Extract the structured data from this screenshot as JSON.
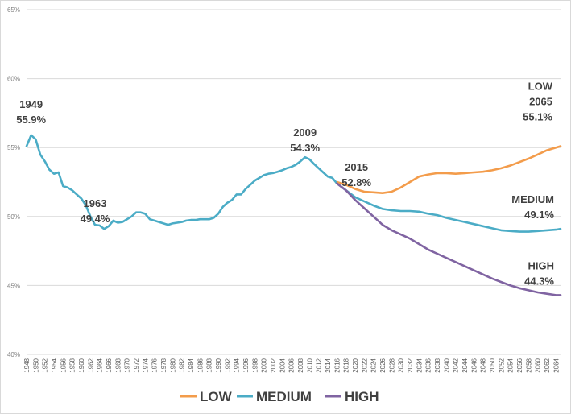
{
  "chart_data": {
    "type": "line",
    "y_ticks": [
      "65%",
      "60%",
      "55%",
      "50%",
      "45%",
      "40%"
    ],
    "ylim": [
      40,
      65
    ],
    "xlim": [
      1948,
      2065
    ],
    "x_tick_labels": [
      "1948",
      "1950",
      "1952",
      "1954",
      "1956",
      "1958",
      "1960",
      "1962",
      "1964",
      "1966",
      "1968",
      "1970",
      "1972",
      "1974",
      "1976",
      "1978",
      "1980",
      "1982",
      "1984",
      "1986",
      "1988",
      "1990",
      "1992",
      "1994",
      "1996",
      "1998",
      "2000",
      "2002",
      "2004",
      "2006",
      "2008",
      "2010",
      "2012",
      "2014",
      "2016",
      "2018",
      "2020",
      "2022",
      "2024",
      "2026",
      "2028",
      "2030",
      "2032",
      "2034",
      "2036",
      "2038",
      "2040",
      "2042",
      "2044",
      "2046",
      "2048",
      "2050",
      "2052",
      "2054",
      "2056",
      "2058",
      "2060",
      "2062",
      "2064"
    ],
    "grid": "horizontal",
    "legend_position": "bottom",
    "series": [
      {
        "name": "LOW",
        "color": "#f39c4b",
        "x": [
          2016,
          2018,
          2020,
          2022,
          2024,
          2026,
          2028,
          2030,
          2032,
          2034,
          2036,
          2038,
          2040,
          2042,
          2044,
          2046,
          2048,
          2050,
          2052,
          2054,
          2056,
          2058,
          2060,
          2062,
          2064,
          2065
        ],
        "values": [
          52.5,
          52.3,
          52.0,
          51.8,
          51.75,
          51.7,
          51.8,
          52.1,
          52.5,
          52.9,
          53.05,
          53.15,
          53.15,
          53.1,
          53.15,
          53.2,
          53.25,
          53.35,
          53.5,
          53.7,
          53.95,
          54.2,
          54.5,
          54.8,
          55.0,
          55.1
        ]
      },
      {
        "name": "MEDIUM",
        "color": "#4bacc6",
        "x": [
          1948,
          1949,
          1950,
          1951,
          1952,
          1953,
          1954,
          1955,
          1956,
          1957,
          1958,
          1959,
          1960,
          1961,
          1962,
          1963,
          1964,
          1965,
          1966,
          1967,
          1968,
          1969,
          1970,
          1971,
          1972,
          1973,
          1974,
          1975,
          1976,
          1977,
          1978,
          1979,
          1980,
          1981,
          1982,
          1983,
          1984,
          1985,
          1986,
          1987,
          1988,
          1989,
          1990,
          1991,
          1992,
          1993,
          1994,
          1995,
          1996,
          1997,
          1998,
          1999,
          2000,
          2001,
          2002,
          2003,
          2004,
          2005,
          2006,
          2007,
          2008,
          2009,
          2010,
          2011,
          2012,
          2013,
          2014,
          2015,
          2016,
          2018,
          2020,
          2022,
          2024,
          2026,
          2028,
          2030,
          2032,
          2034,
          2036,
          2038,
          2040,
          2042,
          2044,
          2046,
          2048,
          2050,
          2052,
          2054,
          2056,
          2058,
          2060,
          2062,
          2064,
          2065
        ],
        "values": [
          55.1,
          55.9,
          55.6,
          54.5,
          54.0,
          53.4,
          53.1,
          53.2,
          52.2,
          52.1,
          51.9,
          51.6,
          51.3,
          50.8,
          50.0,
          49.4,
          49.35,
          49.1,
          49.3,
          49.7,
          49.55,
          49.6,
          49.8,
          50.0,
          50.3,
          50.3,
          50.2,
          49.8,
          49.7,
          49.6,
          49.5,
          49.4,
          49.5,
          49.55,
          49.6,
          49.7,
          49.75,
          49.75,
          49.8,
          49.8,
          49.8,
          49.9,
          50.2,
          50.7,
          51.0,
          51.2,
          51.6,
          51.6,
          52.0,
          52.3,
          52.6,
          52.8,
          53.0,
          53.1,
          53.15,
          53.25,
          53.35,
          53.5,
          53.6,
          53.75,
          54.0,
          54.3,
          54.15,
          53.8,
          53.5,
          53.2,
          52.9,
          52.8,
          52.4,
          51.9,
          51.4,
          51.1,
          50.8,
          50.55,
          50.45,
          50.4,
          50.4,
          50.35,
          50.2,
          50.1,
          49.9,
          49.75,
          49.6,
          49.45,
          49.3,
          49.15,
          49.0,
          48.95,
          48.9,
          48.9,
          48.95,
          49.0,
          49.05,
          49.1
        ]
      },
      {
        "name": "HIGH",
        "color": "#8064a2",
        "x": [
          2016,
          2018,
          2020,
          2022,
          2024,
          2026,
          2028,
          2030,
          2032,
          2034,
          2036,
          2038,
          2040,
          2042,
          2044,
          2046,
          2048,
          2050,
          2052,
          2054,
          2056,
          2058,
          2060,
          2062,
          2064,
          2065
        ],
        "values": [
          52.4,
          51.9,
          51.2,
          50.6,
          50.0,
          49.4,
          49.0,
          48.7,
          48.4,
          48.0,
          47.6,
          47.3,
          47.0,
          46.7,
          46.4,
          46.1,
          45.8,
          45.5,
          45.25,
          45.0,
          44.8,
          44.65,
          44.5,
          44.4,
          44.3,
          44.3
        ]
      }
    ],
    "annotations": [
      {
        "lines": [
          "1949",
          "55.9%"
        ],
        "x": 1949,
        "y": 55.9,
        "align": "middle"
      },
      {
        "lines": [
          "1963",
          "49.4%"
        ],
        "x": 1963,
        "y": 49.4,
        "align": "middle"
      },
      {
        "lines": [
          "2009",
          "54.3%"
        ],
        "x": 2009,
        "y": 54.3,
        "align": "middle"
      },
      {
        "lines": [
          "2015",
          "52.8%"
        ],
        "x": 2015,
        "y": 52.8,
        "align": "middle"
      },
      {
        "lines": [
          "LOW",
          "2065",
          "55.1%"
        ],
        "x": 2065,
        "y": 55.1,
        "align": "end"
      },
      {
        "lines": [
          "MEDIUM",
          "49.1%"
        ],
        "x": 2065,
        "y": 49.1,
        "align": "end"
      },
      {
        "lines": [
          "HIGH",
          "44.3%"
        ],
        "x": 2065,
        "y": 44.3,
        "align": "end"
      }
    ]
  }
}
